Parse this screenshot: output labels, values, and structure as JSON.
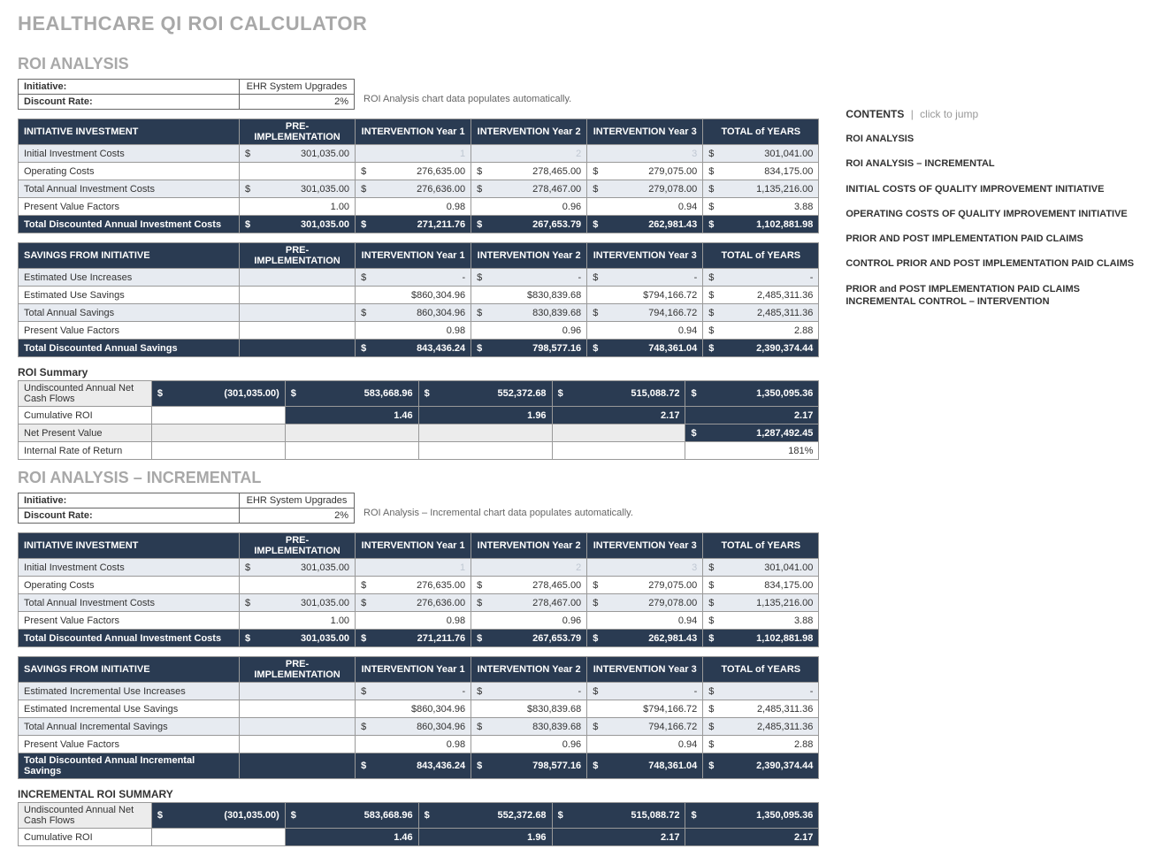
{
  "colors": {
    "header_bg": "#2a3b52",
    "header_fg": "#ffffff",
    "row_alt": "#e7ebf1",
    "row_grey": "#ececec",
    "title_grey": "#a8a8a8",
    "border": "#999999"
  },
  "title": "HEALTHCARE QI ROI CALCULATOR",
  "sections": {
    "roi": {
      "title": "ROI ANALYSIS",
      "meta": {
        "initiative_label": "Initiative:",
        "initiative_value": "EHR System Upgrades",
        "discount_label": "Discount Rate:",
        "discount_value": "2%",
        "note": "ROI Analysis chart data populates automatically."
      },
      "invest": {
        "header": [
          "INITIATIVE INVESTMENT",
          "PRE-IMPLEMENTATION",
          "INTERVENTION Year 1",
          "INTERVENTION Year 2",
          "INTERVENTION Year 3",
          "TOTAL of YEARS"
        ],
        "rows": [
          {
            "style": "alt",
            "label": "Initial Investment Costs",
            "cells": [
              {
                "d": "$",
                "v": "301,035.00"
              },
              {
                "v": "1",
                "dim": true
              },
              {
                "v": "2",
                "dim": true
              },
              {
                "v": "3",
                "dim": true
              },
              {
                "d": "$",
                "v": "301,041.00"
              }
            ]
          },
          {
            "style": "white",
            "label": "Operating Costs",
            "cells": [
              {
                "v": ""
              },
              {
                "d": "$",
                "v": "276,635.00"
              },
              {
                "d": "$",
                "v": "278,465.00"
              },
              {
                "d": "$",
                "v": "279,075.00"
              },
              {
                "d": "$",
                "v": "834,175.00"
              }
            ]
          },
          {
            "style": "alt",
            "label": "Total Annual Investment Costs",
            "cells": [
              {
                "d": "$",
                "v": "301,035.00"
              },
              {
                "d": "$",
                "v": "276,636.00"
              },
              {
                "d": "$",
                "v": "278,467.00"
              },
              {
                "d": "$",
                "v": "279,078.00"
              },
              {
                "d": "$",
                "v": "1,135,216.00"
              }
            ]
          },
          {
            "style": "white",
            "label": "Present Value Factors",
            "cells": [
              {
                "v": "1.00"
              },
              {
                "v": "0.98"
              },
              {
                "v": "0.96"
              },
              {
                "v": "0.94"
              },
              {
                "d": "$",
                "v": "3.88"
              }
            ]
          },
          {
            "style": "dark",
            "label": "Total Discounted Annual Investment Costs",
            "cells": [
              {
                "d": "$",
                "v": "301,035.00"
              },
              {
                "d": "$",
                "v": "271,211.76"
              },
              {
                "d": "$",
                "v": "267,653.79"
              },
              {
                "d": "$",
                "v": "262,981.43"
              },
              {
                "d": "$",
                "v": "1,102,881.98"
              }
            ]
          }
        ]
      },
      "savings": {
        "header": [
          "SAVINGS FROM INITIATIVE",
          "PRE-IMPLEMENTATION",
          "INTERVENTION Year 1",
          "INTERVENTION Year 2",
          "INTERVENTION Year 3",
          "TOTAL of YEARS"
        ],
        "rows": [
          {
            "style": "alt",
            "label": "Estimated Use Increases",
            "cells": [
              {
                "v": ""
              },
              {
                "d": "$",
                "v": "-"
              },
              {
                "d": "$",
                "v": "-"
              },
              {
                "d": "$",
                "v": "-"
              },
              {
                "d": "$",
                "v": "-"
              }
            ]
          },
          {
            "style": "white",
            "label": "Estimated Use Savings",
            "cells": [
              {
                "v": ""
              },
              {
                "v": "$860,304.96"
              },
              {
                "v": "$830,839.68"
              },
              {
                "v": "$794,166.72"
              },
              {
                "d": "$",
                "v": "2,485,311.36"
              }
            ]
          },
          {
            "style": "alt",
            "label": "Total Annual Savings",
            "cells": [
              {
                "v": ""
              },
              {
                "d": "$",
                "v": "860,304.96"
              },
              {
                "d": "$",
                "v": "830,839.68"
              },
              {
                "d": "$",
                "v": "794,166.72"
              },
              {
                "d": "$",
                "v": "2,485,311.36"
              }
            ]
          },
          {
            "style": "white",
            "label": "Present Value Factors",
            "cells": [
              {
                "v": ""
              },
              {
                "v": "0.98"
              },
              {
                "v": "0.96"
              },
              {
                "v": "0.94"
              },
              {
                "d": "$",
                "v": "2.88"
              }
            ]
          },
          {
            "style": "dark",
            "label": "Total Discounted Annual Savings",
            "cells": [
              {
                "v": ""
              },
              {
                "d": "$",
                "v": "843,436.24"
              },
              {
                "d": "$",
                "v": "798,577.16"
              },
              {
                "d": "$",
                "v": "748,361.04"
              },
              {
                "d": "$",
                "v": "2,390,374.44"
              }
            ]
          }
        ]
      },
      "summary_title": "ROI Summary",
      "summary": {
        "rows": [
          {
            "style": "dark",
            "label": "Undiscounted Annual Net Cash Flows",
            "label_grey": true,
            "cells": [
              {
                "d": "$",
                "v": "(301,035.00)"
              },
              {
                "d": "$",
                "v": "583,668.96"
              },
              {
                "d": "$",
                "v": "552,372.68"
              },
              {
                "d": "$",
                "v": "515,088.72"
              },
              {
                "d": "$",
                "v": "1,350,095.36"
              }
            ]
          },
          {
            "style": "white",
            "label": "Cumulative ROI",
            "cells": [
              {
                "v": ""
              },
              {
                "v": "1.46",
                "darkcell": true
              },
              {
                "v": "1.96",
                "darkcell": true
              },
              {
                "v": "2.17",
                "darkcell": true
              },
              {
                "v": "2.17",
                "darkcell": true
              }
            ]
          },
          {
            "style": "grey",
            "label": "Net Present Value",
            "cells": [
              {
                "v": ""
              },
              {
                "v": ""
              },
              {
                "v": ""
              },
              {
                "v": ""
              },
              {
                "d": "$",
                "v": "1,287,492.45",
                "darkcell": true
              }
            ]
          },
          {
            "style": "white",
            "label": "Internal Rate of Return",
            "cells": [
              {
                "v": ""
              },
              {
                "v": ""
              },
              {
                "v": ""
              },
              {
                "v": ""
              },
              {
                "v": "181%"
              }
            ]
          }
        ]
      }
    },
    "roi_inc": {
      "title": "ROI ANALYSIS – INCREMENTAL",
      "meta": {
        "initiative_label": "Initiative:",
        "initiative_value": "EHR System Upgrades",
        "discount_label": "Discount Rate:",
        "discount_value": "2%",
        "note": "ROI Analysis – Incremental chart data populates automatically."
      },
      "invest": {
        "header": [
          "INITIATIVE INVESTMENT",
          "PRE-IMPLEMENTATION",
          "INTERVENTION Year 1",
          "INTERVENTION Year 2",
          "INTERVENTION Year 3",
          "TOTAL of YEARS"
        ],
        "rows": [
          {
            "style": "alt",
            "label": "Initial Investment Costs",
            "cells": [
              {
                "d": "$",
                "v": "301,035.00"
              },
              {
                "v": "1",
                "dim": true
              },
              {
                "v": "2",
                "dim": true
              },
              {
                "v": "3",
                "dim": true
              },
              {
                "d": "$",
                "v": "301,041.00"
              }
            ]
          },
          {
            "style": "white",
            "label": "Operating Costs",
            "cells": [
              {
                "v": ""
              },
              {
                "d": "$",
                "v": "276,635.00"
              },
              {
                "d": "$",
                "v": "278,465.00"
              },
              {
                "d": "$",
                "v": "279,075.00"
              },
              {
                "d": "$",
                "v": "834,175.00"
              }
            ]
          },
          {
            "style": "alt",
            "label": "Total Annual Investment Costs",
            "cells": [
              {
                "d": "$",
                "v": "301,035.00"
              },
              {
                "d": "$",
                "v": "276,636.00"
              },
              {
                "d": "$",
                "v": "278,467.00"
              },
              {
                "d": "$",
                "v": "279,078.00"
              },
              {
                "d": "$",
                "v": "1,135,216.00"
              }
            ]
          },
          {
            "style": "white",
            "label": "Present Value Factors",
            "cells": [
              {
                "v": "1.00"
              },
              {
                "v": "0.98"
              },
              {
                "v": "0.96"
              },
              {
                "v": "0.94"
              },
              {
                "d": "$",
                "v": "3.88"
              }
            ]
          },
          {
            "style": "dark",
            "label": "Total Discounted Annual Investment Costs",
            "cells": [
              {
                "d": "$",
                "v": "301,035.00"
              },
              {
                "d": "$",
                "v": "271,211.76"
              },
              {
                "d": "$",
                "v": "267,653.79"
              },
              {
                "d": "$",
                "v": "262,981.43"
              },
              {
                "d": "$",
                "v": "1,102,881.98"
              }
            ]
          }
        ]
      },
      "savings": {
        "header": [
          "SAVINGS FROM INITIATIVE",
          "PRE-IMPLEMENTATION",
          "INTERVENTION Year 1",
          "INTERVENTION Year 2",
          "INTERVENTION Year 3",
          "TOTAL of YEARS"
        ],
        "rows": [
          {
            "style": "alt",
            "label": "Estimated Incremental Use Increases",
            "cells": [
              {
                "v": ""
              },
              {
                "d": "$",
                "v": "-"
              },
              {
                "d": "$",
                "v": "-"
              },
              {
                "d": "$",
                "v": "-"
              },
              {
                "d": "$",
                "v": "-"
              }
            ]
          },
          {
            "style": "white",
            "label": "Estimated Incremental Use Savings",
            "cells": [
              {
                "v": ""
              },
              {
                "v": "$860,304.96"
              },
              {
                "v": "$830,839.68"
              },
              {
                "v": "$794,166.72"
              },
              {
                "d": "$",
                "v": "2,485,311.36"
              }
            ]
          },
          {
            "style": "alt",
            "label": "Total Annual Incremental Savings",
            "cells": [
              {
                "v": ""
              },
              {
                "d": "$",
                "v": "860,304.96"
              },
              {
                "d": "$",
                "v": "830,839.68"
              },
              {
                "d": "$",
                "v": "794,166.72"
              },
              {
                "d": "$",
                "v": "2,485,311.36"
              }
            ]
          },
          {
            "style": "white",
            "label": "Present Value Factors",
            "cells": [
              {
                "v": ""
              },
              {
                "v": "0.98"
              },
              {
                "v": "0.96"
              },
              {
                "v": "0.94"
              },
              {
                "d": "$",
                "v": "2.88"
              }
            ]
          },
          {
            "style": "dark",
            "label": "Total Discounted Annual Incremental Savings",
            "cells": [
              {
                "v": ""
              },
              {
                "d": "$",
                "v": "843,436.24"
              },
              {
                "d": "$",
                "v": "798,577.16"
              },
              {
                "d": "$",
                "v": "748,361.04"
              },
              {
                "d": "$",
                "v": "2,390,374.44"
              }
            ]
          }
        ]
      },
      "summary_title": "INCREMENTAL ROI SUMMARY",
      "summary": {
        "rows": [
          {
            "style": "dark",
            "label": "Undiscounted Annual Net Cash Flows",
            "label_grey": true,
            "cells": [
              {
                "d": "$",
                "v": "(301,035.00)"
              },
              {
                "d": "$",
                "v": "583,668.96"
              },
              {
                "d": "$",
                "v": "552,372.68"
              },
              {
                "d": "$",
                "v": "515,088.72"
              },
              {
                "d": "$",
                "v": "1,350,095.36"
              }
            ]
          },
          {
            "style": "white",
            "label": "Cumulative ROI",
            "cells": [
              {
                "v": ""
              },
              {
                "v": "1.46",
                "darkcell": true
              },
              {
                "v": "1.96",
                "darkcell": true
              },
              {
                "v": "2.17",
                "darkcell": true
              },
              {
                "v": "2.17",
                "darkcell": true
              }
            ]
          }
        ]
      }
    }
  },
  "contents": {
    "label": "CONTENTS",
    "sep": "|",
    "hint": "click to jump",
    "links": [
      "ROI ANALYSIS",
      "ROI ANALYSIS – INCREMENTAL",
      "INITIAL COSTS OF QUALITY IMPROVEMENT INITIATIVE",
      "OPERATING COSTS OF QUALITY IMPROVEMENT INITIATIVE",
      "PRIOR AND POST IMPLEMENTATION PAID CLAIMS",
      "CONTROL PRIOR AND POST IMPLEMENTATION PAID CLAIMS",
      "PRIOR and POST IMPLEMENTATION PAID CLAIMS INCREMENTAL CONTROL – INTERVENTION"
    ]
  }
}
